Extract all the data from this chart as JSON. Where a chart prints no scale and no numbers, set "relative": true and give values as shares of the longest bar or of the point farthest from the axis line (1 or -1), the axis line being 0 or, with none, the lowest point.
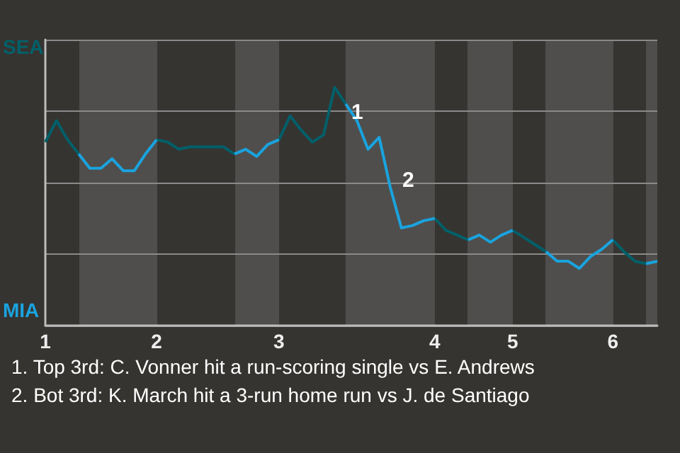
{
  "chart_data": {
    "type": "line",
    "relative": true,
    "categories": [
      "1",
      null,
      null,
      null,
      null,
      null,
      null,
      null,
      null,
      null,
      "2",
      null,
      null,
      null,
      null,
      null,
      null,
      null,
      null,
      null,
      null,
      "3",
      null,
      null,
      null,
      null,
      null,
      null,
      null,
      null,
      null,
      null,
      null,
      null,
      null,
      "4",
      null,
      null,
      null,
      null,
      null,
      null,
      "5",
      null,
      null,
      null,
      null,
      null,
      null,
      null,
      null,
      "6",
      null,
      null,
      null,
      null
    ],
    "series": [
      {
        "color": "#00606a",
        "values": [
          0.77,
          0.86,
          0.78,
          0.72,
          null,
          null,
          null,
          null,
          null,
          null,
          0.78,
          0.77,
          0.74,
          0.75,
          0.75,
          0.75,
          0.75,
          0.72,
          null,
          null,
          null,
          0.78,
          0.88,
          0.82,
          0.77,
          0.8,
          1,
          0.93,
          null,
          null,
          null,
          null,
          null,
          null,
          null,
          0.45,
          0.4,
          0.38,
          0.36,
          null,
          null,
          null,
          0.4,
          0.37,
          0.34,
          0.31,
          null,
          null,
          null,
          null,
          null,
          0.36,
          0.31,
          0.27,
          0.26,
          null
        ]
      },
      {
        "color": "#1aa3de",
        "values": [
          null,
          null,
          null,
          0.72,
          0.66,
          0.66,
          0.7,
          0.65,
          0.65,
          0.72,
          0.78,
          null,
          null,
          null,
          null,
          null,
          null,
          0.72,
          0.74,
          0.71,
          0.76,
          0.78,
          null,
          null,
          null,
          null,
          null,
          0.93,
          0.86,
          0.74,
          0.79,
          0.58,
          0.41,
          0.42,
          0.44,
          0.45,
          null,
          null,
          0.36,
          0.38,
          0.35,
          0.38,
          0.4,
          null,
          null,
          0.31,
          0.27,
          0.27,
          0.24,
          0.29,
          0.32,
          0.36,
          null,
          null,
          0.26,
          0.27
        ]
      }
    ],
    "grid": "y",
    "marker": "none",
    "annotations": [
      "SEA",
      "MIA",
      "1",
      "2",
      "1. Top 3rd: C. Vonner hit a run-scoring single vs E. Andrews",
      "2. Bot 3rd: K. March hit a 3-run home run vs J. de Santiago"
    ]
  }
}
